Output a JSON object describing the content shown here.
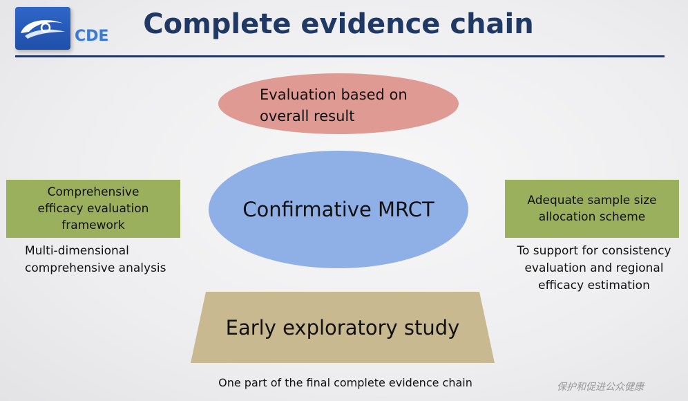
{
  "logo": {
    "text": "CDE"
  },
  "title": "Complete evidence chain",
  "top_ellipse": {
    "line1": "Evaluation based on",
    "line2": "overall result"
  },
  "center": "Confirmative MRCT",
  "left_box": "Comprehensive efficacy evaluation framework",
  "left_note": "Multi-dimensional comprehensive analysis",
  "right_box": "Adequate sample size allocation scheme",
  "right_note": "To support for consistency evaluation and regional efficacy estimation",
  "base": "Early exploratory study",
  "caption": "One part of the final complete evidence chain",
  "slogan": "保护和促进公众健康",
  "colors": {
    "title": "#1f3864",
    "top_ellipse": "#e09a94",
    "center_ellipse": "#8fb0e6",
    "side_boxes": "#9bb05d",
    "base": "#c9b990"
  }
}
